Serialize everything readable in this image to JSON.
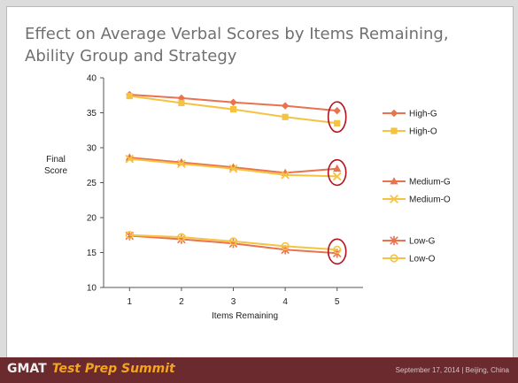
{
  "chart_data": {
    "type": "line",
    "title": "Effect on Average Verbal Scores by Items Remaining, Ability Group and Strategy",
    "xlabel": "Items Remaining",
    "ylabel": "Final Score",
    "categories": [
      "1",
      "2",
      "3",
      "4",
      "5"
    ],
    "x": [
      1,
      2,
      3,
      4,
      5
    ],
    "ylim": [
      10,
      40
    ],
    "yticks": [
      "10",
      "15",
      "20",
      "25",
      "30",
      "35",
      "40"
    ],
    "grid": false,
    "legend_position": "right",
    "series": [
      {
        "name": "High-G",
        "values": [
          37.6,
          37.1,
          36.5,
          36.0,
          35.3
        ],
        "color": "#e8734e",
        "marker": "diamond"
      },
      {
        "name": "High-O",
        "values": [
          37.4,
          36.4,
          35.5,
          34.4,
          33.5
        ],
        "color": "#f5c242",
        "marker": "square"
      },
      {
        "name": "Medium-G",
        "values": [
          28.6,
          27.9,
          27.2,
          26.4,
          27.0
        ],
        "color": "#e8734e",
        "marker": "triangle"
      },
      {
        "name": "Medium-O",
        "values": [
          28.4,
          27.7,
          27.0,
          26.1,
          25.9
        ],
        "color": "#f5c242",
        "marker": "x"
      },
      {
        "name": "Low-G",
        "values": [
          17.4,
          16.9,
          16.3,
          15.4,
          14.9
        ],
        "color": "#e8734e",
        "marker": "star"
      },
      {
        "name": "Low-O",
        "values": [
          17.5,
          17.2,
          16.6,
          15.9,
          15.4
        ],
        "color": "#f5c242",
        "marker": "circle"
      }
    ],
    "highlight_color": "#b3121f"
  },
  "footer": {
    "logo_main": "GMAT",
    "logo_accent": "Test Prep Summit",
    "date_text": "September 17, 2014 | Beijing, China"
  }
}
